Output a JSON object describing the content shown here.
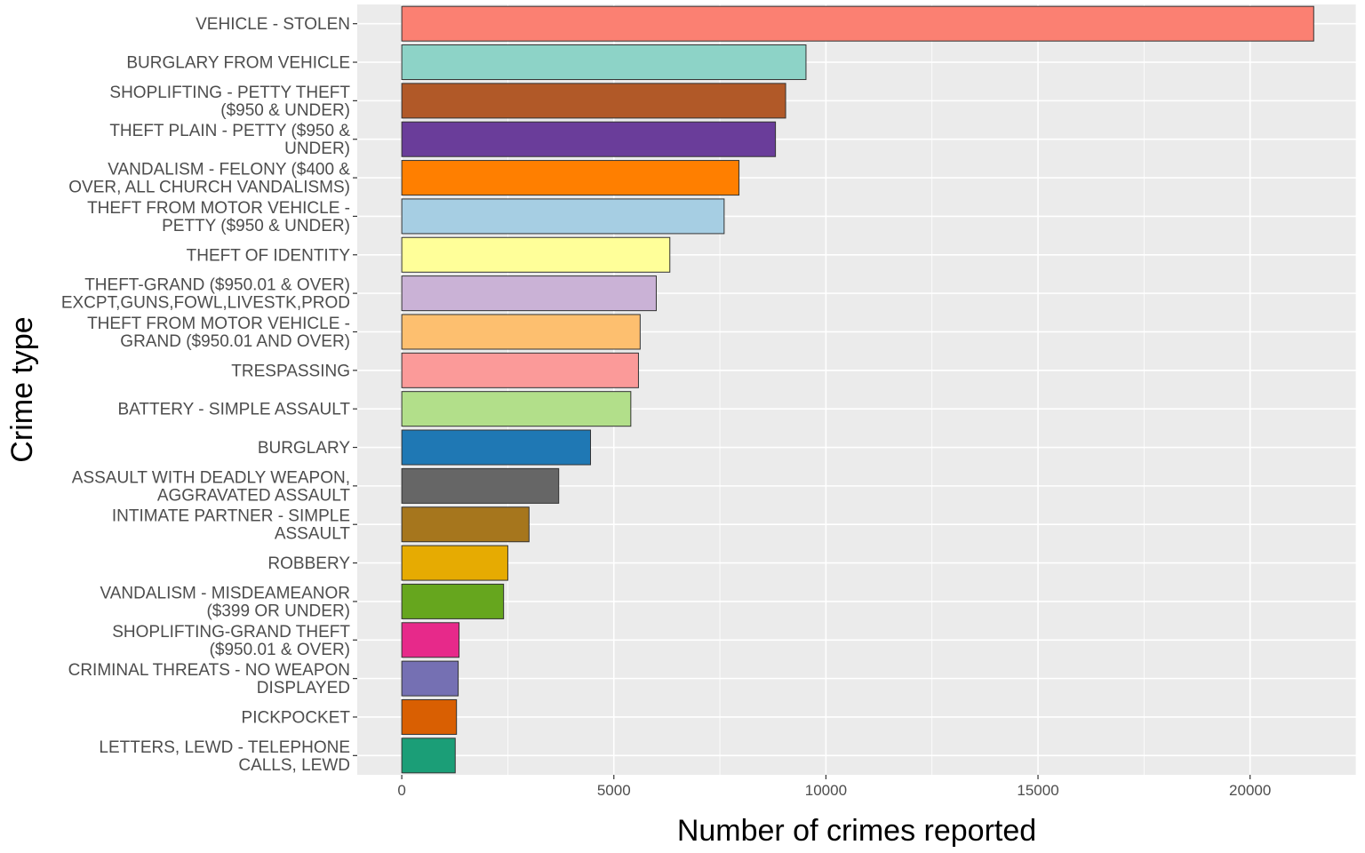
{
  "chart_data": {
    "type": "bar",
    "orientation": "horizontal",
    "xlabel": "Number of crimes reported",
    "ylabel": "Crime type",
    "xlim": [
      -1050,
      22500
    ],
    "x_ticks": [
      0,
      5000,
      10000,
      15000,
      20000
    ],
    "x_tick_labels": [
      "0",
      "5000",
      "10000",
      "15000",
      "20000"
    ],
    "grid": true,
    "legend": "none",
    "panel_background": "#ebebeb",
    "grid_color": "#ffffff",
    "bar_border": "#333333",
    "categories": [
      {
        "label_lines": [
          "VEHICLE - STOLEN"
        ],
        "value": 21500,
        "color": "#FB8072"
      },
      {
        "label_lines": [
          "BURGLARY FROM VEHICLE"
        ],
        "value": 9530,
        "color": "#8DD3C7"
      },
      {
        "label_lines": [
          "SHOPLIFTING - PETTY THEFT",
          "($950 & UNDER)"
        ],
        "value": 9050,
        "color": "#B15928"
      },
      {
        "label_lines": [
          "THEFT PLAIN - PETTY ($950 &",
          "UNDER)"
        ],
        "value": 8810,
        "color": "#6A3D9A"
      },
      {
        "label_lines": [
          "VANDALISM - FELONY ($400 &",
          "OVER, ALL CHURCH VANDALISMS)"
        ],
        "value": 7950,
        "color": "#FF7F00"
      },
      {
        "label_lines": [
          "THEFT FROM MOTOR VEHICLE -",
          "PETTY ($950 & UNDER)"
        ],
        "value": 7600,
        "color": "#A6CEE3"
      },
      {
        "label_lines": [
          "THEFT OF IDENTITY"
        ],
        "value": 6320,
        "color": "#FFFF99"
      },
      {
        "label_lines": [
          "THEFT-GRAND ($950.01 & OVER)",
          "EXCPT,GUNS,FOWL,LIVESTK,PROD"
        ],
        "value": 6000,
        "color": "#CAB2D6"
      },
      {
        "label_lines": [
          "THEFT FROM MOTOR VEHICLE -",
          "GRAND ($950.01 AND OVER)"
        ],
        "value": 5620,
        "color": "#FDBF6F"
      },
      {
        "label_lines": [
          "TRESPASSING"
        ],
        "value": 5580,
        "color": "#FB9A99"
      },
      {
        "label_lines": [
          "BATTERY - SIMPLE ASSAULT"
        ],
        "value": 5400,
        "color": "#B2DF8A"
      },
      {
        "label_lines": [
          "BURGLARY"
        ],
        "value": 4450,
        "color": "#1F78B4"
      },
      {
        "label_lines": [
          "ASSAULT WITH DEADLY WEAPON,",
          "AGGRAVATED ASSAULT"
        ],
        "value": 3700,
        "color": "#666666"
      },
      {
        "label_lines": [
          "INTIMATE PARTNER - SIMPLE",
          "ASSAULT"
        ],
        "value": 3000,
        "color": "#A6761D"
      },
      {
        "label_lines": [
          "ROBBERY"
        ],
        "value": 2500,
        "color": "#E6AB02"
      },
      {
        "label_lines": [
          "VANDALISM - MISDEAMEANOR",
          "($399 OR UNDER)"
        ],
        "value": 2400,
        "color": "#66A61E"
      },
      {
        "label_lines": [
          "SHOPLIFTING-GRAND THEFT",
          "($950.01 & OVER)"
        ],
        "value": 1350,
        "color": "#E7298A"
      },
      {
        "label_lines": [
          "CRIMINAL THREATS - NO WEAPON",
          "DISPLAYED"
        ],
        "value": 1330,
        "color": "#7570B3"
      },
      {
        "label_lines": [
          "PICKPOCKET"
        ],
        "value": 1290,
        "color": "#D95F02"
      },
      {
        "label_lines": [
          "LETTERS, LEWD - TELEPHONE",
          "CALLS, LEWD"
        ],
        "value": 1260,
        "color": "#1B9E77"
      }
    ]
  }
}
